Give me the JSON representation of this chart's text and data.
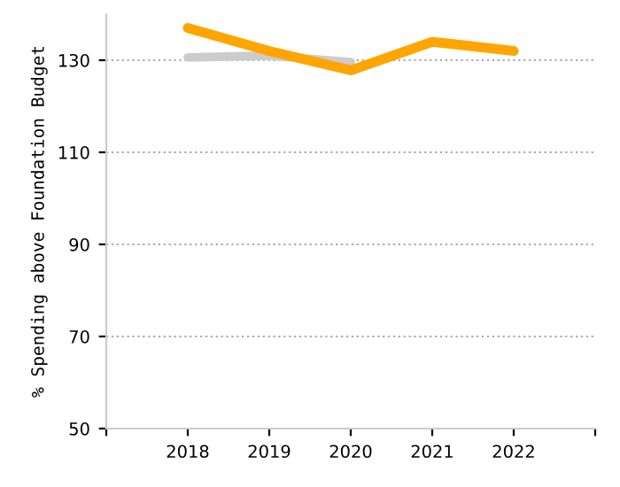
{
  "chart_data": {
    "type": "line",
    "ylabel": "% Spending above Foundation Budget",
    "x": [
      2018,
      2019,
      2020,
      2021,
      2022
    ],
    "series": [
      {
        "color": "#cccccc",
        "values": [
          130.6,
          131,
          129.6,
          null,
          null
        ]
      },
      {
        "color": "#ffa500",
        "values": [
          137,
          132,
          127.8,
          134,
          132
        ]
      }
    ],
    "xlim": [
      2017,
      2023
    ],
    "xticks": [
      {
        "value": 2017,
        "label": null
      },
      2018,
      2019,
      2020,
      2021,
      2022,
      {
        "value": 2023,
        "label": null
      }
    ],
    "ylim": [
      50,
      140
    ],
    "yticks": [
      50,
      70,
      90,
      110,
      130
    ],
    "grid": "y",
    "marker": "none",
    "line_style": "solid"
  }
}
